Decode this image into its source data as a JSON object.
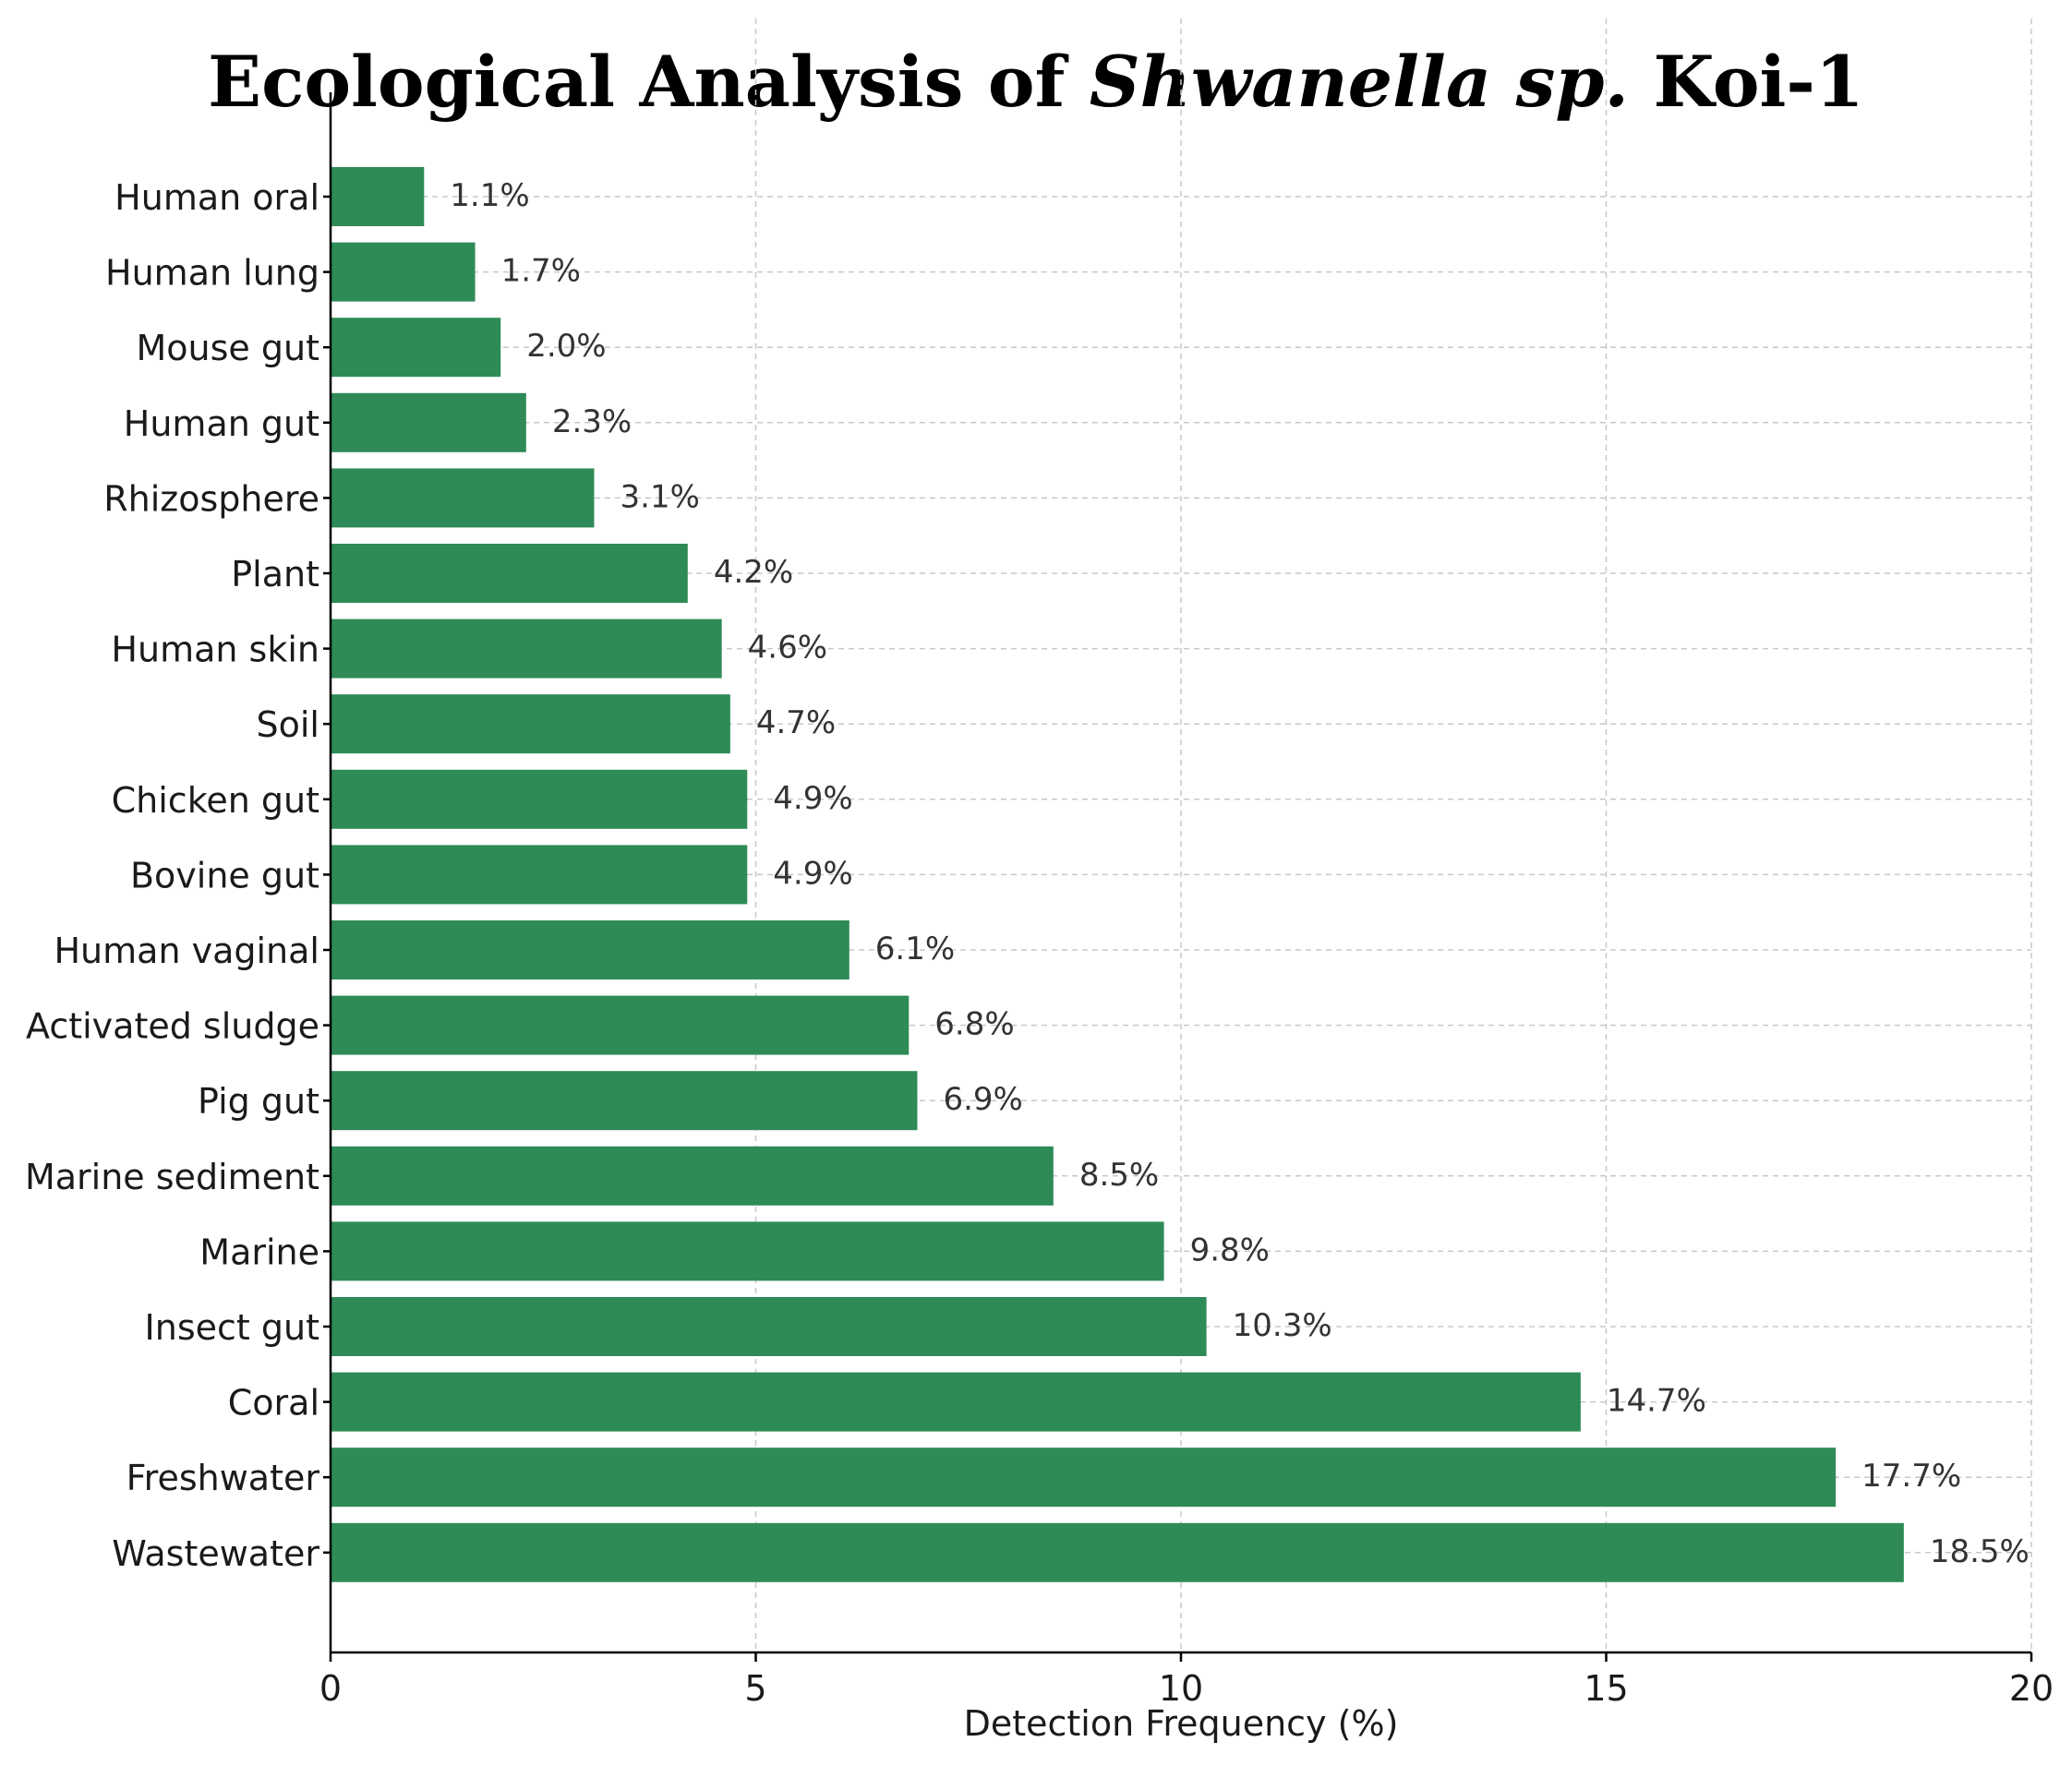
{
  "chart_data": {
    "type": "bar",
    "orientation": "horizontal",
    "title": {
      "prefix": "Ecological Analysis of ",
      "italic": "Shwanella sp.",
      "suffix": " Koi-1"
    },
    "xlabel": "Detection Frequency (%)",
    "ylabel": "",
    "xlim": [
      0,
      20
    ],
    "xticks": [
      0,
      5,
      10,
      15,
      20
    ],
    "grid": true,
    "bar_color": "#2e8b57",
    "categories": [
      "Human oral",
      "Human lung",
      "Mouse gut",
      "Human gut",
      "Rhizosphere",
      "Plant",
      "Human skin",
      "Soil",
      "Chicken gut",
      "Bovine gut",
      "Human vaginal",
      "Activated sludge",
      "Pig gut",
      "Marine sediment",
      "Marine",
      "Insect gut",
      "Coral",
      "Freshwater",
      "Wastewater"
    ],
    "values": [
      1.1,
      1.7,
      2.0,
      2.3,
      3.1,
      4.2,
      4.6,
      4.7,
      4.9,
      4.9,
      6.1,
      6.8,
      6.9,
      8.5,
      9.8,
      10.3,
      14.7,
      17.7,
      18.5
    ],
    "value_labels": [
      "1.1%",
      "1.7%",
      "2.0%",
      "2.3%",
      "3.1%",
      "4.2%",
      "4.6%",
      "4.7%",
      "4.9%",
      "4.9%",
      "6.1%",
      "6.8%",
      "6.9%",
      "8.5%",
      "9.8%",
      "10.3%",
      "14.7%",
      "17.7%",
      "18.5%"
    ]
  }
}
